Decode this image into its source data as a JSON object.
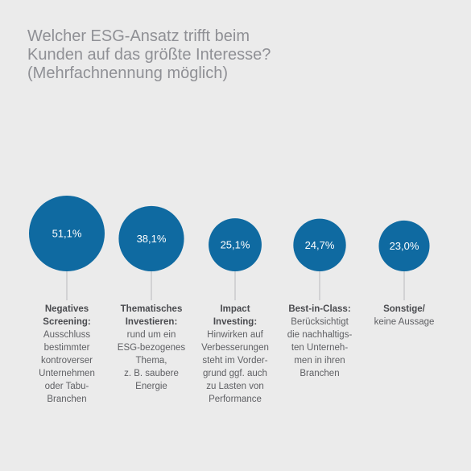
{
  "title_lines": [
    "Welcher ESG-Ansatz trifft beim",
    "Kunden auf das größte Interesse?",
    "(Mehrfachnennung möglich)"
  ],
  "colors": {
    "circle": "#0f6aa1",
    "connector": "#b9babc",
    "background": "#ebebeb"
  },
  "chart_data": {
    "type": "bubble",
    "title": "Welcher ESG-Ansatz trifft beim Kunden auf das größte Interesse? (Mehrfachnennung möglich)",
    "categories": [
      {
        "value": 51.1,
        "label": "51,1%",
        "bold_lines": [
          "Negatives",
          "Screening:"
        ],
        "text_lines": [
          "Ausschluss",
          "bestimmter",
          "kontroverser",
          "Unternehmen",
          "oder Tabu-",
          "Branchen"
        ]
      },
      {
        "value": 38.1,
        "label": "38,1%",
        "bold_lines": [
          "Thematisches",
          "Investieren:"
        ],
        "text_lines": [
          "rund um ein",
          "ESG-bezogenes",
          "Thema,",
          "z. B. saubere",
          "Energie"
        ]
      },
      {
        "value": 25.1,
        "label": "25,1%",
        "bold_lines": [
          "Impact",
          "Investing:"
        ],
        "text_lines": [
          "Hinwirken auf",
          "Verbesserungen",
          "steht im Vorder-",
          "grund ggf. auch",
          "zu Lasten von",
          "Performance"
        ]
      },
      {
        "value": 24.7,
        "label": "24,7%",
        "bold_lines": [],
        "text_lines": [
          "Berücksichtigt",
          "die nachhaltigs-",
          "ten Unterneh-",
          "men in ihren",
          "Branchen"
        ],
        "inline_bold": "Best-in-Class:"
      },
      {
        "value": 23.0,
        "label": "23,0%",
        "bold_lines": [
          "Sonstige/"
        ],
        "text_lines": [
          "keine Aussage"
        ]
      }
    ]
  }
}
